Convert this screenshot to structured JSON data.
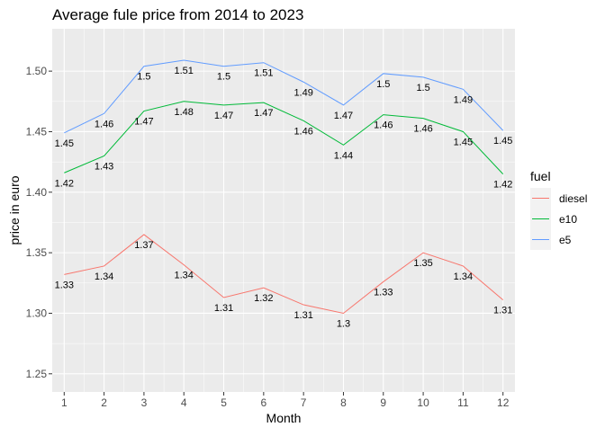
{
  "chart_data": {
    "type": "line",
    "title": "Average fule price from 2014 to 2023",
    "xlabel": "Month",
    "ylabel": "price in euro",
    "x": [
      1,
      2,
      3,
      4,
      5,
      6,
      7,
      8,
      9,
      10,
      11,
      12
    ],
    "xlim": [
      0.7,
      12.3
    ],
    "ylim": [
      1.235,
      1.535
    ],
    "yticks": [
      "1.25",
      "1.30",
      "1.35",
      "1.40",
      "1.45",
      "1.50"
    ],
    "grid": true,
    "legend": {
      "title": "fuel",
      "position": "right"
    },
    "series": [
      {
        "name": "diesel",
        "color": "#F8766D",
        "values": [
          1.332,
          1.339,
          1.365,
          1.34,
          1.313,
          1.321,
          1.307,
          1.3,
          1.326,
          1.35,
          1.339,
          1.311
        ],
        "labels": [
          "1.33",
          "1.34",
          "1.37",
          "1.34",
          "1.31",
          "1.32",
          "1.31",
          "1.3",
          "1.33",
          "1.35",
          "1.34",
          "1.31"
        ]
      },
      {
        "name": "e10",
        "color": "#00BA38",
        "values": [
          1.416,
          1.43,
          1.467,
          1.475,
          1.472,
          1.474,
          1.459,
          1.439,
          1.464,
          1.461,
          1.45,
          1.415
        ],
        "labels": [
          "1.42",
          "1.43",
          "1.47",
          "1.48",
          "1.47",
          "1.47",
          "1.46",
          "1.44",
          "1.46",
          "1.46",
          "1.45",
          "1.42"
        ]
      },
      {
        "name": "e5",
        "color": "#619CFF",
        "values": [
          1.449,
          1.465,
          1.504,
          1.509,
          1.504,
          1.507,
          1.491,
          1.472,
          1.498,
          1.495,
          1.485,
          1.451
        ],
        "labels": [
          "1.45",
          "1.46",
          "1.5",
          "1.51",
          "1.5",
          "1.51",
          "1.49",
          "1.47",
          "1.5",
          "1.5",
          "1.49",
          "1.45"
        ]
      }
    ]
  }
}
